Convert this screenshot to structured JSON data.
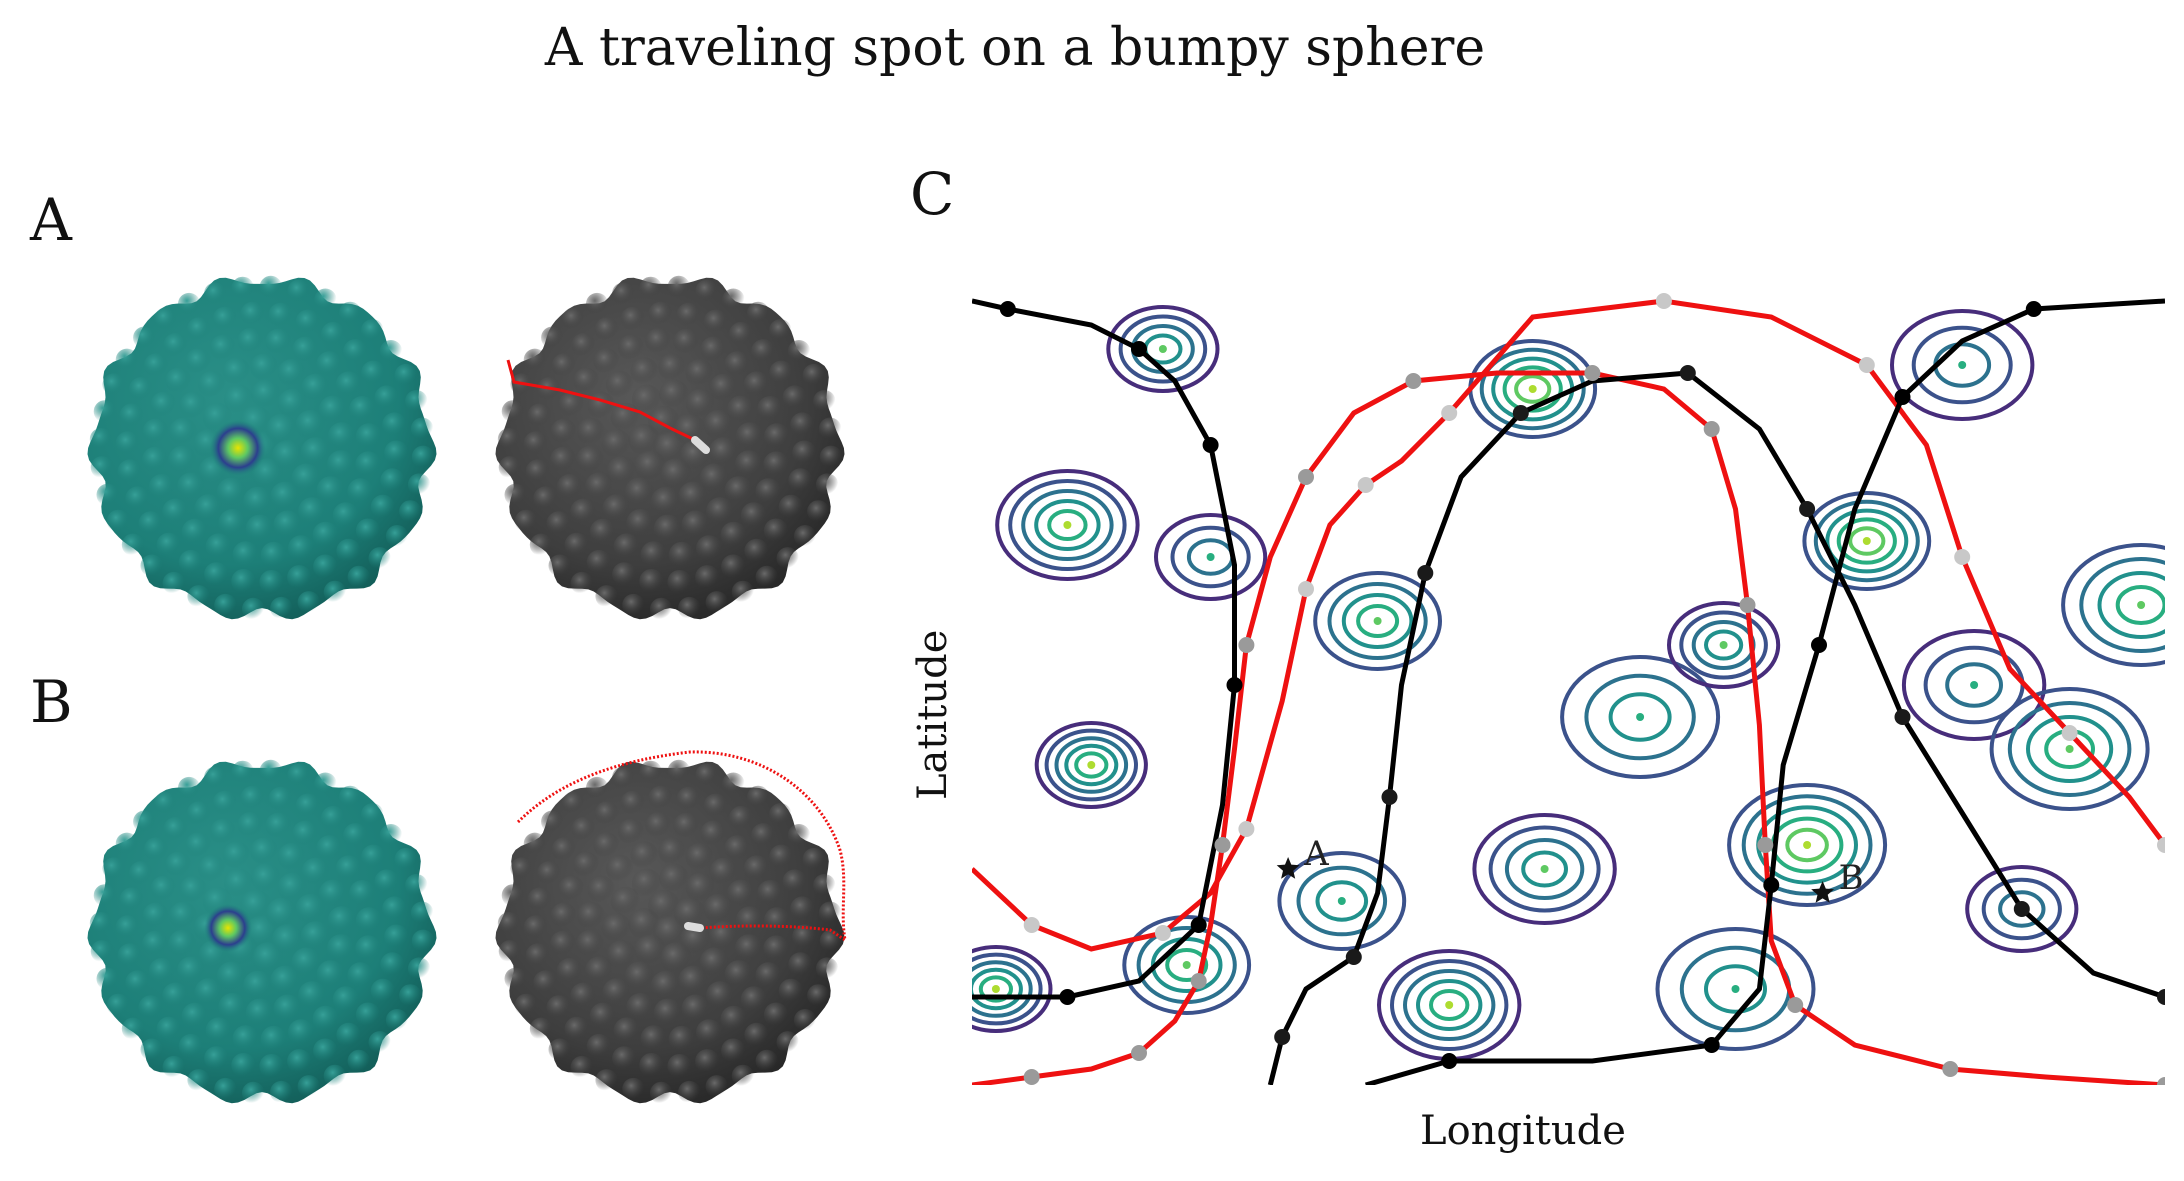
{
  "title": "A traveling spot on a bumpy sphere",
  "panels": {
    "a_label": "A",
    "b_label": "B",
    "c_label": "C"
  },
  "axes": {
    "xlabel": "Longitude",
    "ylabel": "Latitude"
  },
  "annotations": {
    "point_a": "A",
    "point_b": "B"
  },
  "colors": {
    "sphere_teal": "#1d7f78",
    "sphere_dark": "#3e3e3e",
    "path_red": "#ee1111",
    "path_black": "#000000",
    "contour_levels": [
      "#472d7b",
      "#3b528b",
      "#2c728e",
      "#21918c",
      "#28ae80",
      "#5ec962",
      "#addc30"
    ]
  },
  "contour_peaks": [
    {
      "lon": 0.2,
      "lat": 0.66
    },
    {
      "lon": 0.34,
      "lat": 0.58
    },
    {
      "lon": 0.08,
      "lat": 0.7
    },
    {
      "lon": 0.56,
      "lat": 0.46
    },
    {
      "lon": 0.63,
      "lat": 0.55
    },
    {
      "lon": 0.75,
      "lat": 0.68
    },
    {
      "lon": 0.84,
      "lat": 0.5
    },
    {
      "lon": 0.92,
      "lat": 0.42
    },
    {
      "lon": 0.1,
      "lat": 0.4
    },
    {
      "lon": 0.31,
      "lat": 0.23
    },
    {
      "lon": 0.48,
      "lat": 0.27
    },
    {
      "lon": 0.7,
      "lat": 0.3
    },
    {
      "lon": 0.88,
      "lat": 0.22
    },
    {
      "lon": 0.18,
      "lat": 0.15
    },
    {
      "lon": 0.4,
      "lat": 0.1
    },
    {
      "lon": 0.64,
      "lat": 0.12
    },
    {
      "lon": 0.16,
      "lat": 0.92
    },
    {
      "lon": 0.47,
      "lat": 0.87
    },
    {
      "lon": 0.83,
      "lat": 0.9
    },
    {
      "lon": 0.98,
      "lat": 0.6
    },
    {
      "lon": 0.02,
      "lat": 0.12
    }
  ],
  "red_path": [
    [
      0.0,
      0.0
    ],
    [
      0.05,
      0.01
    ],
    [
      0.1,
      0.02
    ],
    [
      0.14,
      0.04
    ],
    [
      0.17,
      0.08
    ],
    [
      0.19,
      0.13
    ],
    [
      0.2,
      0.2
    ],
    [
      0.21,
      0.3
    ],
    [
      0.22,
      0.42
    ],
    [
      0.23,
      0.55
    ],
    [
      0.25,
      0.66
    ],
    [
      0.28,
      0.76
    ],
    [
      0.32,
      0.84
    ],
    [
      0.37,
      0.88
    ],
    [
      0.44,
      0.89
    ],
    [
      0.52,
      0.89
    ],
    [
      0.58,
      0.87
    ],
    [
      0.62,
      0.82
    ],
    [
      0.64,
      0.72
    ],
    [
      0.65,
      0.6
    ],
    [
      0.66,
      0.45
    ],
    [
      0.665,
      0.3
    ],
    [
      0.67,
      0.18
    ],
    [
      0.69,
      0.1
    ],
    [
      0.74,
      0.05
    ],
    [
      0.82,
      0.02
    ],
    [
      0.9,
      0.01
    ],
    [
      1.0,
      0.0
    ]
  ],
  "red_path_2": [
    [
      0.0,
      0.27
    ],
    [
      0.05,
      0.2
    ],
    [
      0.1,
      0.17
    ],
    [
      0.16,
      0.19
    ],
    [
      0.2,
      0.24
    ],
    [
      0.23,
      0.32
    ],
    [
      0.26,
      0.48
    ],
    [
      0.28,
      0.62
    ],
    [
      0.3,
      0.7
    ],
    [
      0.33,
      0.75
    ],
    [
      0.36,
      0.78
    ],
    [
      0.4,
      0.84
    ],
    [
      0.47,
      0.96
    ],
    [
      0.58,
      0.98
    ],
    [
      0.67,
      0.96
    ],
    [
      0.75,
      0.9
    ],
    [
      0.8,
      0.8
    ],
    [
      0.83,
      0.66
    ],
    [
      0.87,
      0.52
    ],
    [
      0.92,
      0.44
    ],
    [
      0.97,
      0.36
    ],
    [
      1.0,
      0.3
    ]
  ],
  "black_path": [
    [
      0.0,
      0.11
    ],
    [
      0.08,
      0.11
    ],
    [
      0.14,
      0.13
    ],
    [
      0.19,
      0.2
    ],
    [
      0.21,
      0.35
    ],
    [
      0.22,
      0.5
    ],
    [
      0.22,
      0.65
    ],
    [
      0.2,
      0.8
    ],
    [
      0.17,
      0.88
    ],
    [
      0.14,
      0.92
    ],
    [
      0.1,
      0.95
    ],
    [
      0.03,
      0.97
    ],
    [
      0.0,
      0.98
    ]
  ],
  "black_path_2": [
    [
      0.25,
      0.0
    ],
    [
      0.26,
      0.06
    ],
    [
      0.28,
      0.12
    ],
    [
      0.32,
      0.16
    ],
    [
      0.34,
      0.24
    ],
    [
      0.35,
      0.36
    ],
    [
      0.36,
      0.5
    ],
    [
      0.38,
      0.64
    ],
    [
      0.41,
      0.76
    ],
    [
      0.46,
      0.84
    ],
    [
      0.52,
      0.88
    ],
    [
      0.6,
      0.89
    ],
    [
      0.66,
      0.82
    ],
    [
      0.7,
      0.72
    ],
    [
      0.74,
      0.6
    ],
    [
      0.78,
      0.46
    ],
    [
      0.83,
      0.34
    ],
    [
      0.88,
      0.22
    ],
    [
      0.94,
      0.14
    ],
    [
      1.0,
      0.11
    ]
  ],
  "black_path_3": [
    [
      0.33,
      0.0
    ],
    [
      0.4,
      0.03
    ],
    [
      0.52,
      0.03
    ],
    [
      0.62,
      0.05
    ],
    [
      0.66,
      0.12
    ],
    [
      0.67,
      0.25
    ],
    [
      0.68,
      0.4
    ],
    [
      0.71,
      0.55
    ],
    [
      0.74,
      0.72
    ],
    [
      0.78,
      0.86
    ],
    [
      0.83,
      0.93
    ],
    [
      0.89,
      0.97
    ],
    [
      1.0,
      0.98
    ]
  ],
  "markers": {
    "star_a": [
      0.265,
      0.27
    ],
    "star_b": [
      0.713,
      0.24
    ]
  }
}
